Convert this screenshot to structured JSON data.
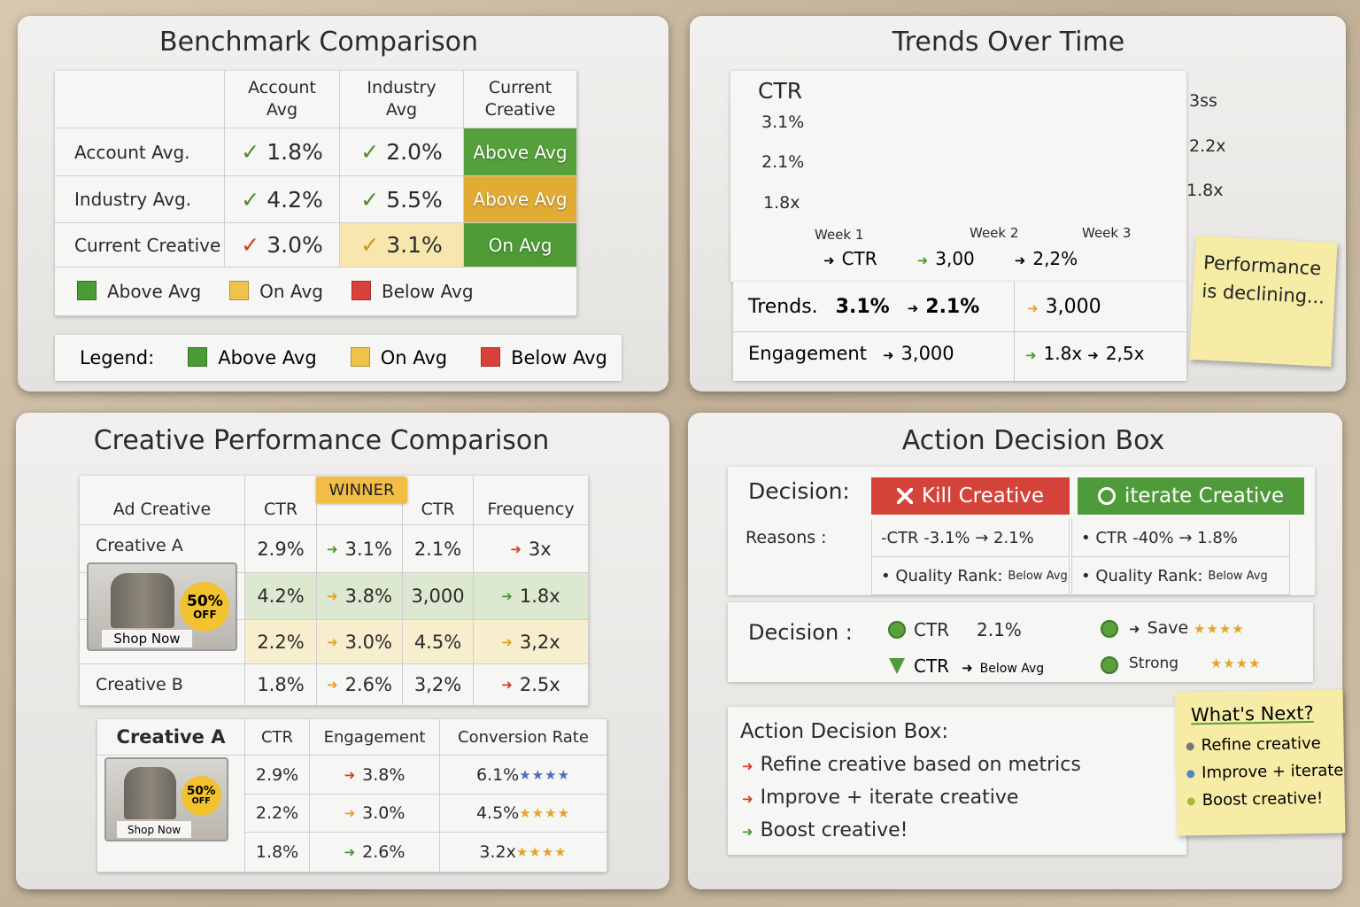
{
  "benchmark": {
    "title": "Benchmark Comparison",
    "header": [
      "Account Avg",
      "Industry Avg",
      "Current Creative"
    ],
    "rows": [
      {
        "label": "Account Avg.",
        "values": [
          "1.8%",
          "2.0%"
        ],
        "status": "Above Avg"
      },
      {
        "label": "Industry Avg.",
        "values": [
          "4.2%",
          "5.5%"
        ],
        "status": "Above Avg"
      },
      {
        "label": "Current Creative",
        "values": [
          "3.0%",
          "3.1%"
        ],
        "status": "On Avg"
      }
    ],
    "legend": [
      "Above Avg",
      "On Avg",
      "Below Avg"
    ],
    "legend2": {
      "label": "Legend:",
      "items": [
        "Above Avg",
        "On Avg",
        "Below Avg"
      ]
    }
  },
  "trends": {
    "title": "Trends Over Time",
    "y_title": "CTR",
    "y_labels": [
      "3.1%",
      "2.1%",
      "1.8x"
    ],
    "x_labels": [
      "Week 1",
      "Week 2",
      "Week 3"
    ],
    "end_labels": [
      "3ss",
      "2.2x",
      "1.8x"
    ],
    "legend": [
      "CTR",
      "3,00",
      "2,2%"
    ],
    "summary": [
      {
        "label": "Trends.",
        "items": [
          "3.1%",
          "2.1%",
          "3,000"
        ]
      },
      {
        "label": "Engagement",
        "items": [
          "3,000",
          "1.8x",
          "2,5x"
        ]
      }
    ],
    "note": "Performance is declining..."
  },
  "creative": {
    "title": "Creative Performance Comparison",
    "winner": "WINNER",
    "header": [
      "Ad Creative",
      "CTR",
      "CTR",
      "Frequency"
    ],
    "rows": [
      {
        "label": "Creative A",
        "values": [
          "2.9%",
          "3.1%",
          "2.1%",
          "3x"
        ]
      },
      {
        "values": [
          "4.2%",
          "3.8%",
          "3,000",
          "1.8x"
        ]
      },
      {
        "values": [
          "2.2%",
          "3.0%",
          "4.5%",
          "3,2x"
        ]
      },
      {
        "label": "Creative B",
        "values": [
          "1.8%",
          "2.6%",
          "3,2%",
          "2.5x"
        ]
      }
    ],
    "ad": {
      "badge": [
        "50%",
        "OFF"
      ],
      "button": "Shop Now"
    },
    "detail": {
      "header": [
        "Creative A",
        "CTR",
        "Engagement",
        "Conversion Rate"
      ],
      "rows": [
        [
          "2.9%",
          "3.8%",
          "6.1%"
        ],
        [
          "2.2%",
          "3.0%",
          "4.5%"
        ],
        [
          "1.8%",
          "2.6%",
          "3.2x"
        ]
      ]
    }
  },
  "action": {
    "title": "Action Decision Box",
    "decision_label": "Decision:",
    "options": [
      "Kill Creative",
      "iterate Creative"
    ],
    "reasons_label": "Reasons :",
    "reasons": [
      [
        "-CTR -3.1% → 2.1%",
        "• CTR -40% → 1.8%"
      ],
      [
        {
          "text": "• Quality Rank:",
          "small": "Below Avg"
        },
        {
          "text": "• Quality Rank:",
          "small": "Below Avg"
        }
      ]
    ],
    "decision2_label": "Decision :",
    "decision2": [
      {
        "label": "CTR",
        "value": "2.1%"
      },
      {
        "label": "CTR",
        "value": "Below Avg"
      },
      {
        "label": "Save"
      },
      {
        "label": "Strong"
      }
    ],
    "box": {
      "title": "Action Decision Box:",
      "items": [
        "Refine creative based on metrics",
        "Improve + iterate creative",
        "Boost creative!"
      ]
    },
    "next": {
      "title": "What's Next?",
      "items": [
        "Refine creative",
        "Improve + iterate",
        "Boost creative!"
      ]
    }
  }
}
